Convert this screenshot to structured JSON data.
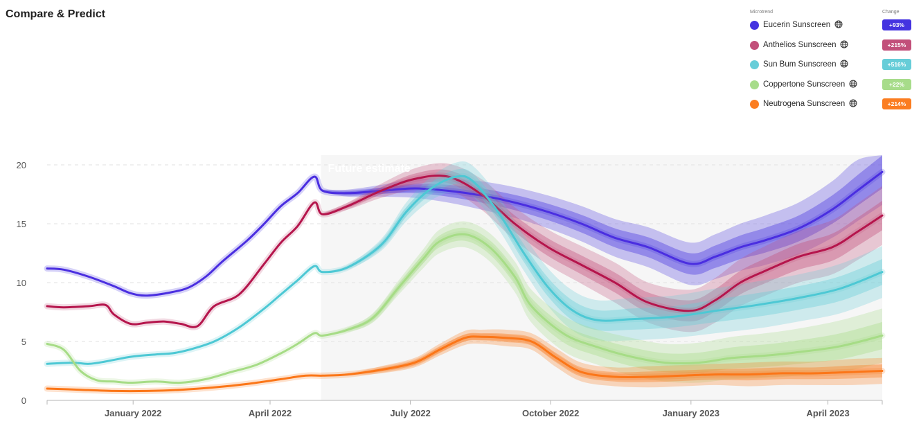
{
  "page": {
    "title": "Compare & Predict"
  },
  "legend": {
    "col_microtrend": "Microtrend",
    "col_change": "Change",
    "items": [
      {
        "name": "Eucerin Sunscreen",
        "change": "+93%",
        "color": "#4433e0",
        "icon": "globe-icon"
      },
      {
        "name": "Anthelios Sunscreen",
        "change": "+215%",
        "color": "#c2507a",
        "icon": "globe-icon"
      },
      {
        "name": "Sun Bum Sunscreen",
        "change": "+516%",
        "color": "#67cdd8",
        "icon": "globe-icon"
      },
      {
        "name": "Coppertone Sunscreen",
        "change": "+22%",
        "color": "#a7dc8a",
        "icon": "globe-icon"
      },
      {
        "name": "Neutrogena Sunscreen",
        "change": "+214%",
        "color": "#fb7d21",
        "icon": "globe-icon"
      }
    ]
  },
  "chart_data": {
    "type": "line",
    "annotation": "Future estimate",
    "forecast_start": 0.328,
    "x_range": [
      0,
      1
    ],
    "ylim": [
      0,
      20
    ],
    "yticks": [
      0,
      5,
      10,
      15,
      20
    ],
    "grid": true,
    "xticks": [
      {
        "label": "January 2022",
        "x": 0.103
      },
      {
        "label": "April 2022",
        "x": 0.267
      },
      {
        "label": "July 2022",
        "x": 0.435
      },
      {
        "label": "October 2022",
        "x": 0.603
      },
      {
        "label": "January 2023",
        "x": 0.771
      },
      {
        "label": "April 2023",
        "x": 0.935
      }
    ],
    "series": [
      {
        "name": "Eucerin Sunscreen",
        "color": "#4433e0",
        "stroke": "#4a2ee0",
        "x": [
          0,
          0.02,
          0.05,
          0.08,
          0.1,
          0.12,
          0.15,
          0.17,
          0.19,
          0.21,
          0.24,
          0.26,
          0.28,
          0.3,
          0.32,
          0.33,
          0.36,
          0.4,
          0.44,
          0.48,
          0.52,
          0.56,
          0.6,
          0.64,
          0.68,
          0.72,
          0.77,
          0.8,
          0.83,
          0.86,
          0.9,
          0.94,
          0.97,
          1.0
        ],
        "y": [
          11.2,
          11.1,
          10.5,
          9.7,
          9.1,
          8.9,
          9.2,
          9.6,
          10.5,
          11.8,
          13.6,
          15.0,
          16.5,
          17.6,
          19.0,
          17.8,
          17.6,
          17.8,
          18.0,
          17.8,
          17.4,
          16.8,
          16.0,
          15.0,
          13.8,
          13.0,
          11.6,
          12.2,
          13.0,
          13.6,
          14.6,
          16.2,
          17.8,
          19.4
        ],
        "band": [
          0,
          0,
          0,
          0,
          0,
          0,
          0,
          0,
          0,
          0,
          0,
          0,
          0,
          0,
          0,
          0.1,
          0.3,
          0.5,
          0.8,
          1.0,
          1.2,
          1.3,
          1.4,
          1.5,
          1.6,
          1.7,
          1.8,
          1.9,
          2.0,
          2.1,
          2.2,
          2.4,
          2.6,
          2.8
        ]
      },
      {
        "name": "Anthelios Sunscreen",
        "color": "#c2507a",
        "stroke": "#b5154c",
        "x": [
          0,
          0.02,
          0.05,
          0.07,
          0.08,
          0.1,
          0.12,
          0.14,
          0.16,
          0.18,
          0.2,
          0.23,
          0.26,
          0.28,
          0.3,
          0.32,
          0.33,
          0.36,
          0.4,
          0.44,
          0.48,
          0.52,
          0.56,
          0.6,
          0.64,
          0.68,
          0.72,
          0.77,
          0.8,
          0.83,
          0.86,
          0.9,
          0.94,
          0.97,
          1.0
        ],
        "y": [
          8.0,
          7.9,
          8.0,
          8.1,
          7.3,
          6.5,
          6.6,
          6.7,
          6.5,
          6.3,
          8.0,
          9.0,
          11.6,
          13.4,
          14.8,
          16.8,
          15.8,
          16.5,
          17.8,
          18.8,
          19.0,
          17.5,
          15.0,
          13.0,
          11.5,
          10.0,
          8.3,
          7.6,
          8.5,
          10.0,
          11.0,
          12.2,
          13.0,
          14.3,
          15.7
        ],
        "band": [
          0,
          0,
          0,
          0,
          0,
          0,
          0,
          0,
          0,
          0,
          0,
          0,
          0,
          0,
          0,
          0,
          0.1,
          0.3,
          0.6,
          0.9,
          1.1,
          1.3,
          1.4,
          1.5,
          1.6,
          1.7,
          1.7,
          1.8,
          1.9,
          2.0,
          2.1,
          2.2,
          2.3,
          2.4,
          2.5
        ]
      },
      {
        "name": "Sun Bum Sunscreen",
        "color": "#67cdd8",
        "stroke": "#4dc8d4",
        "x": [
          0,
          0.03,
          0.05,
          0.07,
          0.1,
          0.13,
          0.15,
          0.17,
          0.2,
          0.23,
          0.26,
          0.28,
          0.3,
          0.32,
          0.33,
          0.36,
          0.4,
          0.43,
          0.46,
          0.49,
          0.51,
          0.54,
          0.57,
          0.6,
          0.63,
          0.66,
          0.7,
          0.75,
          0.8,
          0.85,
          0.9,
          0.95,
          1.0
        ],
        "y": [
          3.1,
          3.2,
          3.1,
          3.3,
          3.7,
          3.9,
          4.0,
          4.3,
          5.0,
          6.2,
          7.8,
          9.0,
          10.2,
          11.4,
          10.9,
          11.3,
          13.2,
          16.0,
          18.0,
          19.0,
          18.6,
          16.0,
          12.6,
          9.6,
          7.6,
          6.8,
          6.9,
          7.1,
          7.6,
          8.1,
          8.7,
          9.5,
          10.9
        ],
        "band": [
          0,
          0,
          0,
          0,
          0,
          0,
          0,
          0,
          0,
          0,
          0,
          0,
          0,
          0,
          0,
          0.2,
          0.5,
          0.8,
          1.0,
          1.2,
          1.3,
          1.4,
          1.5,
          1.6,
          1.7,
          1.7,
          1.8,
          1.8,
          1.9,
          2.0,
          2.0,
          2.1,
          2.2
        ]
      },
      {
        "name": "Coppertone Sunscreen",
        "color": "#a7dc8a",
        "stroke": "#a6dc86",
        "x": [
          0,
          0.02,
          0.04,
          0.06,
          0.08,
          0.1,
          0.13,
          0.16,
          0.19,
          0.22,
          0.25,
          0.28,
          0.3,
          0.32,
          0.33,
          0.36,
          0.39,
          0.42,
          0.45,
          0.47,
          0.5,
          0.53,
          0.56,
          0.58,
          0.62,
          0.66,
          0.7,
          0.74,
          0.78,
          0.82,
          0.86,
          0.9,
          0.95,
          1.0
        ],
        "y": [
          4.8,
          4.3,
          2.5,
          1.7,
          1.6,
          1.5,
          1.6,
          1.5,
          1.8,
          2.4,
          3.0,
          4.0,
          4.8,
          5.7,
          5.5,
          6.0,
          7.0,
          9.5,
          12.0,
          13.5,
          14.1,
          13.0,
          10.5,
          8.0,
          5.6,
          4.5,
          3.7,
          3.2,
          3.2,
          3.6,
          3.8,
          4.1,
          4.6,
          5.5
        ],
        "band": [
          0,
          0,
          0,
          0,
          0,
          0,
          0,
          0,
          0,
          0,
          0,
          0,
          0,
          0,
          0,
          0.2,
          0.4,
          0.6,
          0.8,
          1.0,
          1.1,
          1.2,
          1.3,
          1.4,
          1.5,
          1.5,
          1.6,
          1.6,
          1.7,
          1.8,
          1.9,
          2.0,
          2.2,
          2.3
        ]
      },
      {
        "name": "Neutrogena Sunscreen",
        "color": "#fb7d21",
        "stroke": "#fb7618",
        "x": [
          0,
          0.04,
          0.08,
          0.12,
          0.16,
          0.2,
          0.24,
          0.28,
          0.31,
          0.33,
          0.36,
          0.4,
          0.44,
          0.47,
          0.5,
          0.52,
          0.55,
          0.58,
          0.61,
          0.64,
          0.68,
          0.72,
          0.76,
          0.8,
          0.84,
          0.88,
          0.92,
          0.96,
          1.0
        ],
        "y": [
          1.0,
          0.9,
          0.8,
          0.8,
          0.9,
          1.1,
          1.4,
          1.8,
          2.1,
          2.1,
          2.2,
          2.6,
          3.2,
          4.3,
          5.3,
          5.4,
          5.3,
          5.0,
          3.6,
          2.4,
          2.0,
          2.0,
          2.1,
          2.2,
          2.2,
          2.3,
          2.3,
          2.4,
          2.5
        ],
        "band": [
          0,
          0,
          0,
          0,
          0,
          0,
          0,
          0,
          0,
          0,
          0.1,
          0.3,
          0.4,
          0.5,
          0.6,
          0.6,
          0.7,
          0.7,
          0.8,
          0.8,
          0.8,
          0.9,
          0.9,
          0.9,
          1.0,
          1.0,
          1.0,
          1.1,
          1.1
        ]
      }
    ]
  }
}
